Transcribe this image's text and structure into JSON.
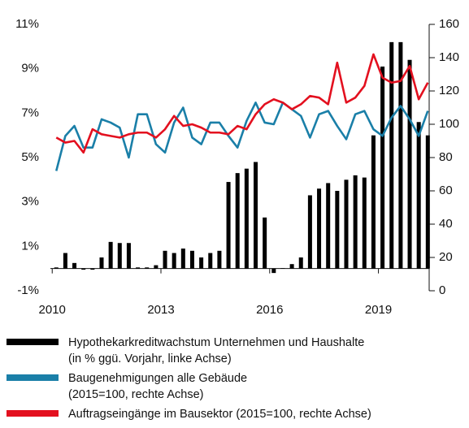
{
  "chart_data": {
    "type": "bar_line",
    "x": [
      2010,
      2010.25,
      2010.5,
      2010.75,
      2011,
      2011.25,
      2011.5,
      2011.75,
      2012,
      2012.25,
      2012.5,
      2012.75,
      2013,
      2013.25,
      2013.5,
      2013.75,
      2014,
      2014.25,
      2014.5,
      2014.75,
      2015,
      2015.25,
      2015.5,
      2015.75,
      2016,
      2016.25,
      2016.5,
      2016.75,
      2017,
      2017.25,
      2017.5,
      2017.75,
      2018,
      2018.25,
      2018.5,
      2018.75,
      2019,
      2019.25,
      2019.5,
      2019.75,
      2020,
      2020.25
    ],
    "xlim": [
      2009.95,
      2020.4
    ],
    "xticks": [
      2010,
      2013,
      2016,
      2019
    ],
    "ylim": [
      -1,
      11
    ],
    "yticks": [
      {
        "value": -1,
        "label": "-1%"
      },
      {
        "value": 1,
        "label": "1%"
      },
      {
        "value": 3,
        "label": "3%"
      },
      {
        "value": 5,
        "label": "5%"
      },
      {
        "value": 7,
        "label": "7%"
      },
      {
        "value": 9,
        "label": "9%"
      },
      {
        "value": 11,
        "label": "11%"
      }
    ],
    "y2lim": [
      0,
      160
    ],
    "y2ticks": [
      0,
      20,
      40,
      60,
      80,
      100,
      120,
      140,
      160
    ],
    "series": [
      {
        "name": "Hypothekarkreditwachstum Unternehmen und Haushalte\n(in % ggü. Vorjahr, linke Achse)",
        "kind": "bar",
        "color": "#000000",
        "values": [
          0.05,
          0.7,
          0.25,
          -0.05,
          -0.05,
          0.5,
          1.2,
          1.15,
          1.15,
          0.05,
          0.05,
          0.15,
          0.8,
          0.7,
          0.9,
          0.8,
          0.5,
          0.7,
          0.8,
          3.9,
          4.3,
          4.5,
          4.8,
          2.3,
          -0.2,
          0.02,
          0.2,
          0.5,
          3.3,
          3.6,
          3.85,
          3.5,
          4.0,
          4.2,
          4.1,
          6.0,
          9.1,
          10.2,
          10.2,
          9.4,
          6.6,
          6.0
        ]
      },
      {
        "name": "Baugenehmigungen alle Gebäude\n(2015=100, rechte Achse)",
        "kind": "line",
        "axis": "y2",
        "color": "#1a7fa8",
        "values": [
          72,
          93,
          99,
          86,
          86,
          103,
          101,
          98,
          80,
          106,
          106,
          88,
          83,
          101,
          110,
          92,
          88,
          101,
          101,
          93,
          86,
          102,
          113,
          101,
          100,
          113,
          109,
          105,
          92,
          106,
          108,
          99,
          91,
          106,
          108,
          97,
          93,
          104,
          111,
          103,
          93,
          108
        ]
      },
      {
        "name": "Auftragseingänge im Bausektor (2015=100, rechte Achse)",
        "kind": "line",
        "axis": "y2",
        "color": "#e3101f",
        "values": [
          92,
          89,
          90,
          83,
          97,
          94,
          93,
          92,
          94,
          95,
          95,
          92,
          97,
          105,
          99,
          100,
          98,
          95,
          95,
          94,
          99,
          97,
          106,
          112,
          115,
          113,
          109,
          112,
          117,
          116,
          112,
          137,
          113,
          116,
          123,
          142,
          128,
          125,
          126,
          135,
          115,
          125
        ]
      }
    ]
  }
}
